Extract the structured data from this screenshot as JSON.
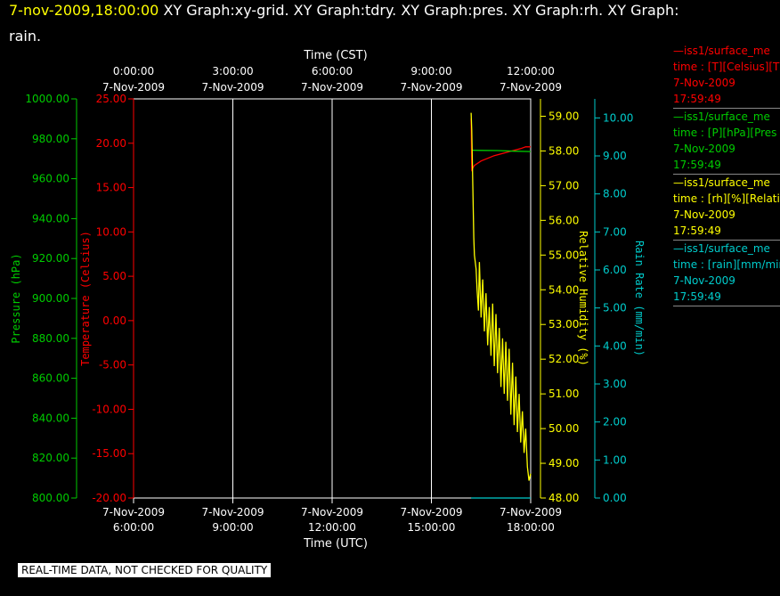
{
  "title": {
    "stamp": "7-nov-2009,18:00:00",
    "graphs_line1": "XY Graph:xy-grid.  XY Graph:tdry.  XY Graph:pres.  XY Graph:rh.  XY Graph:",
    "graphs_line2": "rain."
  },
  "quality_notice": "REAL-TIME DATA, NOT CHECKED FOR QUALITY",
  "colors": {
    "temperature": "#ff0000",
    "pressure": "#00cc00",
    "humidity": "#ffff00",
    "rain": "#00cccc",
    "grid": "#ffffff",
    "background": "#000000"
  },
  "legend": [
    {
      "lines": [
        "—iss1/surface_me",
        "time : [T][Celsius][T",
        "7-Nov-2009",
        "17:59:49"
      ],
      "color": "#ff0000"
    },
    {
      "lines": [
        "—iss1/surface_me",
        "time : [P][hPa][Pres",
        "7-Nov-2009",
        "17:59:49"
      ],
      "color": "#00cc00"
    },
    {
      "lines": [
        "—iss1/surface_me",
        "time : [rh][%][Relati",
        "7-Nov-2009",
        "17:59:49"
      ],
      "color": "#ffff00"
    },
    {
      "lines": [
        "—iss1/surface_me",
        "time : [rain][mm/min",
        "7-Nov-2009",
        "17:59:49"
      ],
      "color": "#00cccc"
    }
  ],
  "chart_data": {
    "type": "line",
    "top_axis": {
      "label": "Time (CST)",
      "ticks": [
        {
          "hour": 6,
          "time": "0:00:00",
          "date": "7-Nov-2009"
        },
        {
          "hour": 9,
          "time": "3:00:00",
          "date": "7-Nov-2009"
        },
        {
          "hour": 12,
          "time": "6:00:00",
          "date": "7-Nov-2009"
        },
        {
          "hour": 15,
          "time": "9:00:00",
          "date": "7-Nov-2009"
        },
        {
          "hour": 18,
          "time": "12:00:00",
          "date": "7-Nov-2009"
        }
      ]
    },
    "bottom_axis": {
      "label": "Time (UTC)",
      "ticks": [
        {
          "hour": 6,
          "date": "7-Nov-2009",
          "time": "6:00:00"
        },
        {
          "hour": 9,
          "date": "7-Nov-2009",
          "time": "9:00:00"
        },
        {
          "hour": 12,
          "date": "7-Nov-2009",
          "time": "12:00:00"
        },
        {
          "hour": 15,
          "date": "7-Nov-2009",
          "time": "15:00:00"
        },
        {
          "hour": 18,
          "date": "7-Nov-2009",
          "time": "18:00:00"
        }
      ],
      "range_hours_utc": [
        6,
        18
      ]
    },
    "axes": [
      {
        "id": "pressure",
        "label": "Pressure (hPa)",
        "unit": "hPa",
        "range": [
          800,
          1000
        ],
        "ticks": [
          "800.00",
          "820.00",
          "840.00",
          "860.00",
          "880.00",
          "900.00",
          "920.00",
          "940.00",
          "960.00",
          "980.00",
          "1000.00"
        ]
      },
      {
        "id": "temperature",
        "label": "Temperature (Celsius)",
        "unit": "Celsius",
        "range": [
          -20,
          25
        ],
        "ticks": [
          "-20.00",
          "-15.00",
          "-10.00",
          "-5.00",
          "0.00",
          "5.00",
          "10.00",
          "15.00",
          "20.00",
          "25.00"
        ]
      },
      {
        "id": "humidity",
        "label": "Relative Humidity (%)",
        "unit": "%",
        "range": [
          48,
          59.5
        ],
        "ticks": [
          "48.00",
          "49.00",
          "50.00",
          "51.00",
          "52.00",
          "53.00",
          "54.00",
          "55.00",
          "56.00",
          "57.00",
          "58.00",
          "59.00"
        ]
      },
      {
        "id": "rain",
        "label": "Rain Rate (mm/min)",
        "unit": "mm/min",
        "range": [
          0,
          10.5
        ],
        "ticks": [
          "0.00",
          "1.00",
          "2.00",
          "3.00",
          "4.00",
          "5.00",
          "6.00",
          "7.00",
          "8.00",
          "9.00",
          "10.00"
        ]
      }
    ],
    "grid": true,
    "series": [
      {
        "id": "temperature",
        "axis": "temperature",
        "points": [
          [
            16.2,
            22.8
          ],
          [
            16.22,
            17.0
          ],
          [
            16.3,
            17.5
          ],
          [
            16.5,
            18.0
          ],
          [
            16.7,
            18.3
          ],
          [
            16.9,
            18.6
          ],
          [
            17.1,
            18.8
          ],
          [
            17.3,
            19.0
          ],
          [
            17.5,
            19.2
          ],
          [
            17.7,
            19.4
          ],
          [
            17.85,
            19.6
          ],
          [
            18.0,
            19.6
          ]
        ]
      },
      {
        "id": "pressure",
        "axis": "pressure",
        "points": [
          [
            16.22,
            974.3
          ],
          [
            16.5,
            974.2
          ],
          [
            17.0,
            974.1
          ],
          [
            17.5,
            973.8
          ],
          [
            18.0,
            973.6
          ]
        ]
      },
      {
        "id": "humidity",
        "axis": "humidity",
        "points": [
          [
            16.2,
            59.1
          ],
          [
            16.22,
            58.6
          ],
          [
            16.25,
            57.0
          ],
          [
            16.28,
            55.5
          ],
          [
            16.3,
            55.0
          ],
          [
            16.35,
            54.6
          ],
          [
            16.38,
            54.0
          ],
          [
            16.42,
            53.4
          ],
          [
            16.45,
            54.8
          ],
          [
            16.5,
            53.2
          ],
          [
            16.55,
            54.3
          ],
          [
            16.6,
            52.8
          ],
          [
            16.65,
            53.9
          ],
          [
            16.7,
            52.4
          ],
          [
            16.75,
            53.5
          ],
          [
            16.8,
            52.1
          ],
          [
            16.85,
            53.6
          ],
          [
            16.9,
            51.8
          ],
          [
            16.95,
            53.3
          ],
          [
            17.0,
            51.6
          ],
          [
            17.05,
            52.9
          ],
          [
            17.1,
            51.2
          ],
          [
            17.15,
            52.6
          ],
          [
            17.2,
            51.0
          ],
          [
            17.25,
            52.5
          ],
          [
            17.3,
            50.8
          ],
          [
            17.35,
            52.3
          ],
          [
            17.4,
            50.4
          ],
          [
            17.45,
            51.9
          ],
          [
            17.5,
            50.1
          ],
          [
            17.55,
            51.5
          ],
          [
            17.6,
            49.9
          ],
          [
            17.65,
            51.0
          ],
          [
            17.7,
            49.6
          ],
          [
            17.75,
            50.5
          ],
          [
            17.8,
            49.3
          ],
          [
            17.85,
            50.0
          ],
          [
            17.9,
            48.9
          ],
          [
            17.95,
            48.5
          ],
          [
            18.0,
            48.7
          ]
        ]
      },
      {
        "id": "rain",
        "axis": "rain",
        "points": [
          [
            16.2,
            0.0
          ],
          [
            18.0,
            0.0
          ]
        ]
      }
    ]
  }
}
